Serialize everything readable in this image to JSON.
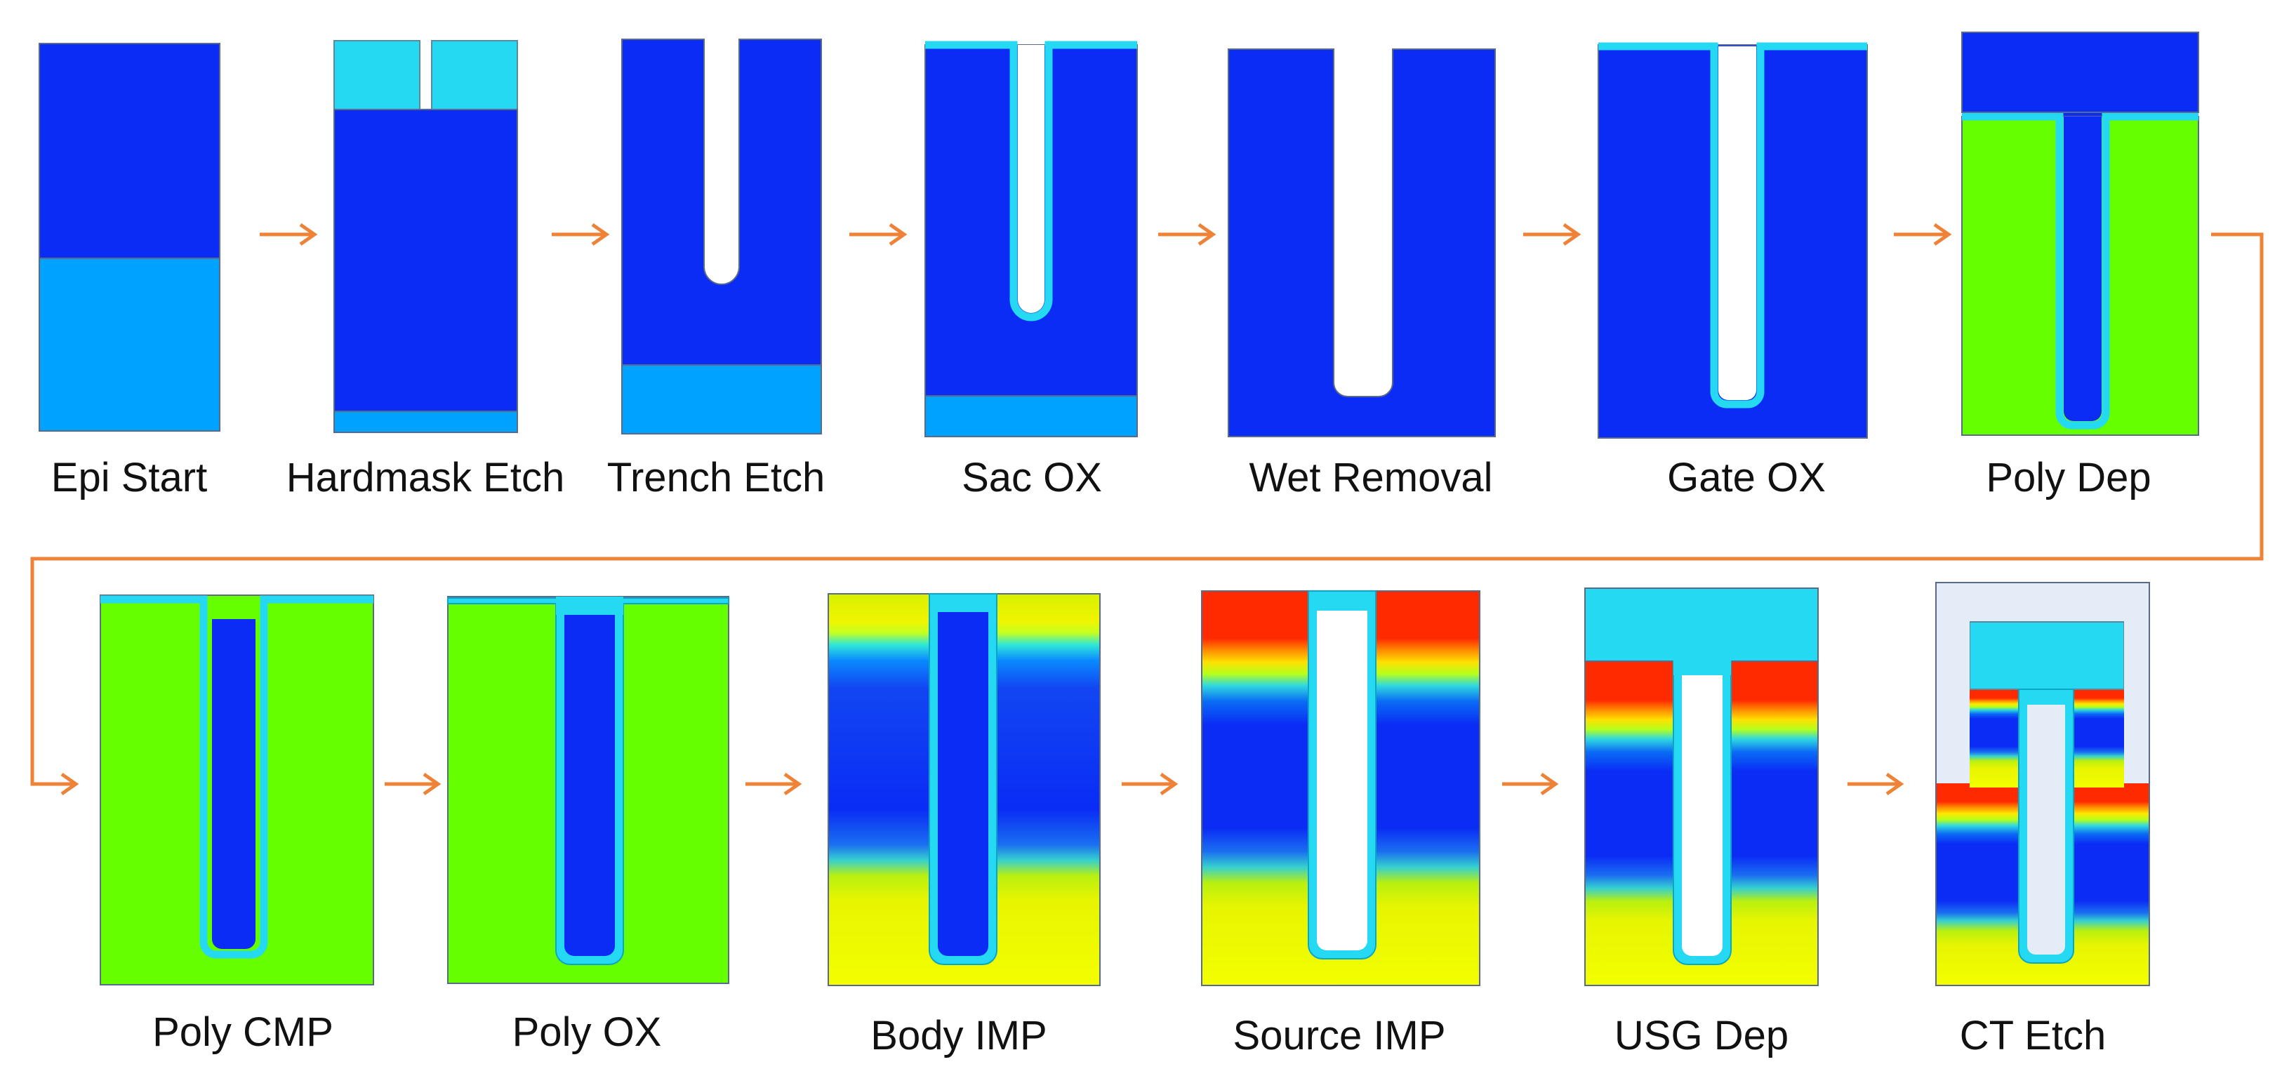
{
  "colors": {
    "epi": "#0a2cf5",
    "substrate": "#00a2ff",
    "oxide": "#26d9f2",
    "oxide_edge": "#0aa6c8",
    "poly": "#66ff00",
    "body_fill": "#e6ff00",
    "source_fill": "#ff2a00",
    "contact_fill": "#e4edf7",
    "arrow": "#ee8236"
  },
  "steps": [
    {
      "label": "Epi Start"
    },
    {
      "label": "Hardmask Etch"
    },
    {
      "label": "Trench Etch"
    },
    {
      "label": "Sac OX"
    },
    {
      "label": "Wet Removal"
    },
    {
      "label": "Gate OX"
    },
    {
      "label": "Poly Dep"
    },
    {
      "label": "Poly CMP"
    },
    {
      "label": "Poly OX"
    },
    {
      "label": "Body IMP"
    },
    {
      "label": "Source IMP"
    },
    {
      "label": "USG Dep"
    },
    {
      "label": "CT Etch"
    }
  ]
}
